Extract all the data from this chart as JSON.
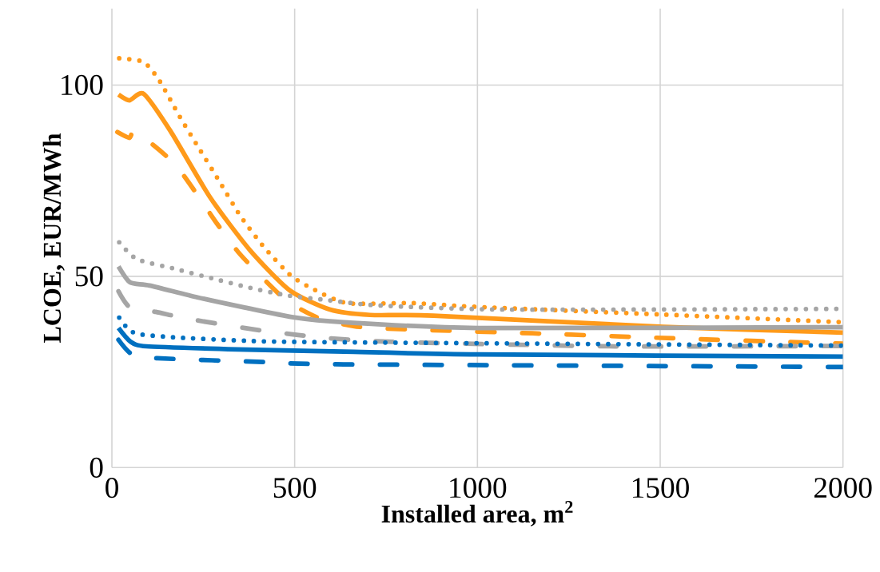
{
  "chart_data": {
    "type": "line",
    "xlabel": "Installed area, m$^{2}$",
    "ylabel": "LCOE, EUR/MWh",
    "xlim": [
      0,
      2000
    ],
    "xticks": [
      0,
      500,
      1000,
      1500,
      2000
    ],
    "ylim": [
      0,
      120
    ],
    "yticks": [
      0,
      50,
      100
    ],
    "grid": true,
    "legend": false,
    "series": [
      {
        "color": "#ff9a1a",
        "line_style": "dotted",
        "x": [
          20,
          87,
          131,
          184,
          238,
          293,
          350,
          413,
          486,
          544,
          643,
          824,
          1001,
          1508,
          2000
        ],
        "values": [
          107,
          106,
          101,
          92,
          83.5,
          75,
          66,
          58,
          50.5,
          47,
          43,
          43,
          42,
          40,
          38
        ]
      },
      {
        "color": "#ff9a1a",
        "line_style": "solid",
        "x": [
          18,
          48,
          87,
          160,
          269,
          378,
          487,
          597,
          706,
          879,
          1508,
          2000
        ],
        "values": [
          97.5,
          96,
          97.7,
          88,
          70.6,
          56.8,
          46.3,
          41.3,
          39.9,
          39.7,
          36.8,
          35.3
        ]
      },
      {
        "color": "#ff9a1a",
        "line_style": "dashed",
        "x": [
          15,
          48,
          66,
          175,
          288,
          345,
          411,
          481,
          568,
          660,
          756,
          1150,
          1534,
          1928,
          2000
        ],
        "values": [
          87.7,
          86.2,
          87.7,
          79,
          63.7,
          56.4,
          49.7,
          43.4,
          39,
          37,
          36.3,
          35.1,
          33.8,
          32.6,
          32.4
        ]
      },
      {
        "color": "#a5a5a5",
        "line_style": "dotted",
        "x": [
          20,
          68,
          171,
          273,
          378,
          481,
          588,
          728,
          1089,
          2000
        ],
        "values": [
          58.9,
          54.5,
          52,
          49.5,
          47,
          45,
          43.8,
          42.4,
          41.3,
          41.5
        ]
      },
      {
        "color": "#a5a5a5",
        "line_style": "solid",
        "x": [
          18,
          50,
          103,
          234,
          365,
          496,
          634,
          1001,
          2000
        ],
        "values": [
          52.6,
          48.4,
          47.6,
          44.5,
          41.8,
          39.3,
          38,
          36.5,
          36.7
        ]
      },
      {
        "color": "#a5a5a5",
        "line_style": "dashed",
        "x": [
          18,
          50,
          120,
          214,
          404,
          597,
          787,
          1377,
          2000
        ],
        "values": [
          46.1,
          41.8,
          40.7,
          38.8,
          35.9,
          33.8,
          32.8,
          31.7,
          31.8
        ]
      },
      {
        "color": "#0070c0",
        "line_style": "dotted",
        "x": [
          20,
          42,
          72,
          179,
          356,
          568,
          2000
        ],
        "values": [
          39.2,
          36.5,
          34.9,
          34,
          33.2,
          32.8,
          31.9
        ]
      },
      {
        "color": "#0070c0",
        "line_style": "solid",
        "x": [
          18,
          50,
          94,
          343,
          634,
          1001,
          2000
        ],
        "values": [
          36.5,
          33,
          31.7,
          30.9,
          30.3,
          29.6,
          29
        ]
      },
      {
        "color": "#0070c0",
        "line_style": "dashed",
        "x": [
          18,
          55,
          124,
          415,
          634,
          2000
        ],
        "values": [
          33.4,
          29.6,
          28.6,
          27.6,
          27,
          26.3
        ]
      }
    ]
  }
}
